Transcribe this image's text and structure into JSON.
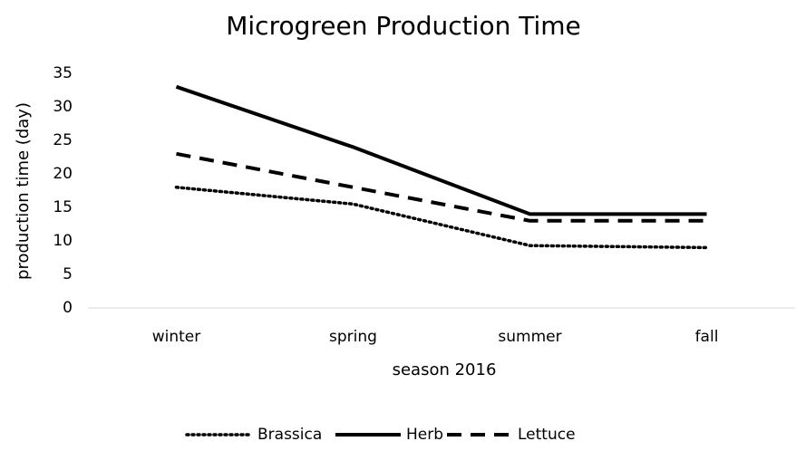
{
  "chart_data": {
    "type": "line",
    "title": "Microgreen Production Time",
    "x_label": "season 2016",
    "y_label": "production time (day)",
    "categories": [
      "winter",
      "spring",
      "summer",
      "fall"
    ],
    "series": [
      {
        "name": "Brassica",
        "color": "#000000",
        "line_style": "dotted",
        "values": [
          18,
          15.5,
          9.3,
          9
        ]
      },
      {
        "name": "Herb",
        "color": "#000000",
        "line_style": "solid",
        "values": [
          33,
          24,
          14,
          14
        ]
      },
      {
        "name": "Lettuce",
        "color": "#000000",
        "line_style": "dashed",
        "values": [
          23,
          18,
          13,
          13
        ]
      }
    ],
    "ylim": [
      0,
      35
    ],
    "yticks": [
      0,
      5,
      10,
      15,
      20,
      25,
      30,
      35
    ],
    "grid": false,
    "legend": "bottom"
  }
}
